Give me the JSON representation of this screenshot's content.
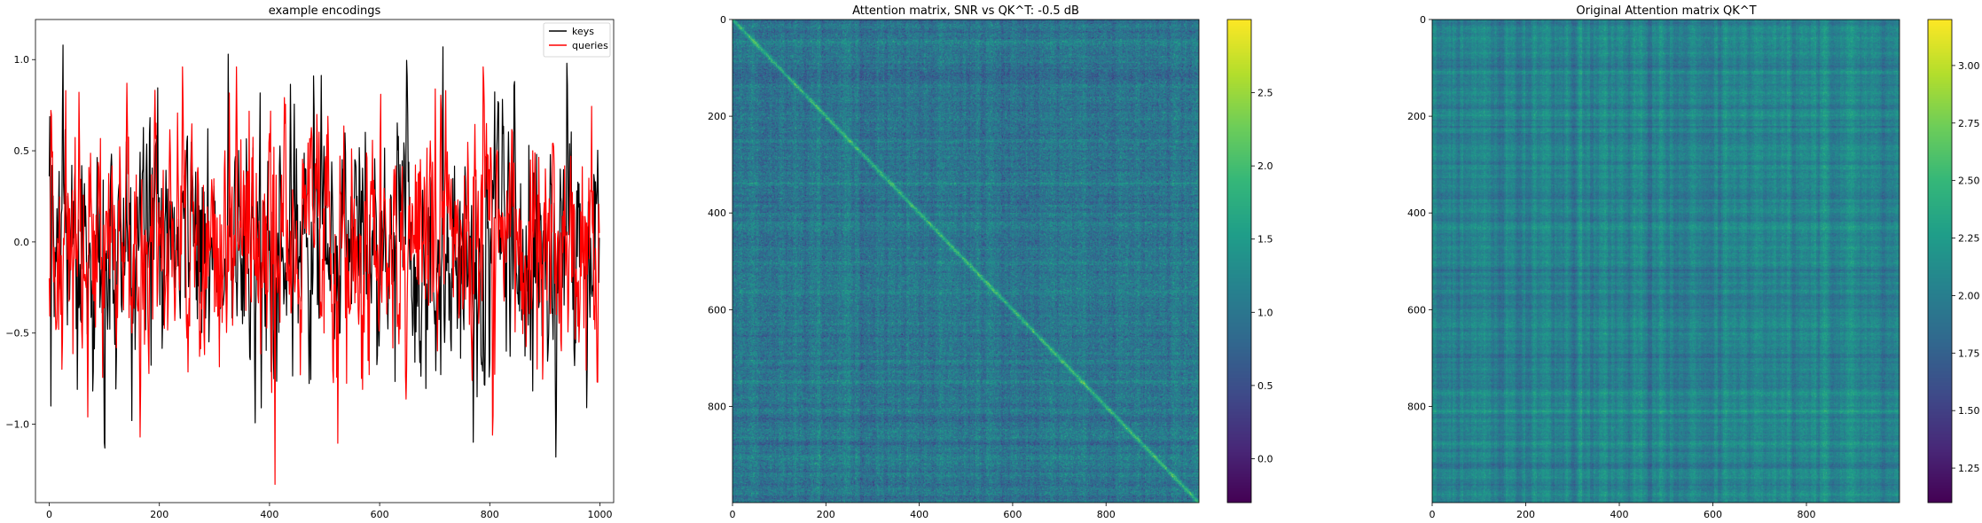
{
  "chart_data": [
    {
      "type": "line",
      "title": "example encodings",
      "xlabel": "",
      "ylabel": "",
      "xlim": [
        -25,
        1025
      ],
      "ylim": [
        -1.43,
        1.22
      ],
      "x_ticks": [
        0,
        200,
        400,
        600,
        800,
        1000
      ],
      "y_ticks": [
        -1.0,
        -0.5,
        0.0,
        0.5,
        1.0
      ],
      "x_tick_labels": [
        "0",
        "200",
        "400",
        "600",
        "800",
        "1000"
      ],
      "y_tick_labels": [
        "−1.0",
        "−0.5",
        "0.0",
        "0.5",
        "1.0"
      ],
      "n_points": 1000,
      "legend_position": "top-right",
      "series": [
        {
          "name": "keys",
          "color": "#000000",
          "min": -1.18,
          "max": 1.08,
          "keypoints": [
            [
              0,
              0.36
            ],
            [
              3,
              -0.9
            ],
            [
              25,
              1.08
            ],
            [
              100,
              -1.1
            ],
            [
              150,
              -0.98
            ],
            [
              325,
              1.03
            ],
            [
              385,
              -0.91
            ],
            [
              480,
              0.91
            ],
            [
              650,
              0.91
            ],
            [
              715,
              1.07
            ],
            [
              845,
              0.88
            ],
            [
              920,
              -1.18
            ],
            [
              940,
              0.98
            ],
            [
              1000,
              -0.1
            ]
          ]
        },
        {
          "name": "queries",
          "color": "#ff0000",
          "min": -1.33,
          "max": 0.96,
          "keypoints": [
            [
              0,
              -0.2
            ],
            [
              30,
              0.83
            ],
            [
              70,
              -0.96
            ],
            [
              165,
              -1.07
            ],
            [
              340,
              0.96
            ],
            [
              410,
              -1.33
            ],
            [
              720,
              0.83
            ],
            [
              805,
              -1.06
            ],
            [
              1000,
              -0.2
            ]
          ]
        }
      ]
    },
    {
      "type": "heatmap",
      "title": "Attention matrix, SNR vs QK^T: -0.5 dB",
      "colormap": "viridis",
      "xlim": [
        0,
        999
      ],
      "ylim": [
        999,
        0
      ],
      "x_ticks": [
        0,
        200,
        400,
        600,
        800
      ],
      "y_ticks": [
        0,
        200,
        400,
        600,
        800
      ],
      "x_tick_labels": [
        "0",
        "200",
        "400",
        "600",
        "800"
      ],
      "y_tick_labels": [
        "0",
        "200",
        "400",
        "600",
        "800"
      ],
      "value_range": [
        -0.3,
        3.0
      ],
      "typical_value": 1.0,
      "diagonal_value": 1.9,
      "colorbar_ticks": [
        0.0,
        0.5,
        1.0,
        1.5,
        2.0,
        2.5
      ],
      "colorbar_tick_labels": [
        "0.0",
        "0.5",
        "1.0",
        "1.5",
        "2.0",
        "2.5"
      ]
    },
    {
      "type": "heatmap",
      "title": "Original Attention matrix QK^T",
      "colormap": "viridis",
      "xlim": [
        0,
        999
      ],
      "ylim": [
        999,
        0
      ],
      "x_ticks": [
        0,
        200,
        400,
        600,
        800
      ],
      "y_ticks": [
        0,
        200,
        400,
        600,
        800
      ],
      "x_tick_labels": [
        "0",
        "200",
        "400",
        "600",
        "800"
      ],
      "y_tick_labels": [
        "0",
        "200",
        "400",
        "600",
        "800"
      ],
      "value_range": [
        1.1,
        3.2
      ],
      "typical_value": 2.05,
      "colorbar_ticks": [
        1.25,
        1.5,
        1.75,
        2.0,
        2.25,
        2.5,
        2.75,
        3.0
      ],
      "colorbar_tick_labels": [
        "1.25",
        "1.50",
        "1.75",
        "2.00",
        "2.25",
        "2.50",
        "2.75",
        "3.00"
      ]
    }
  ]
}
